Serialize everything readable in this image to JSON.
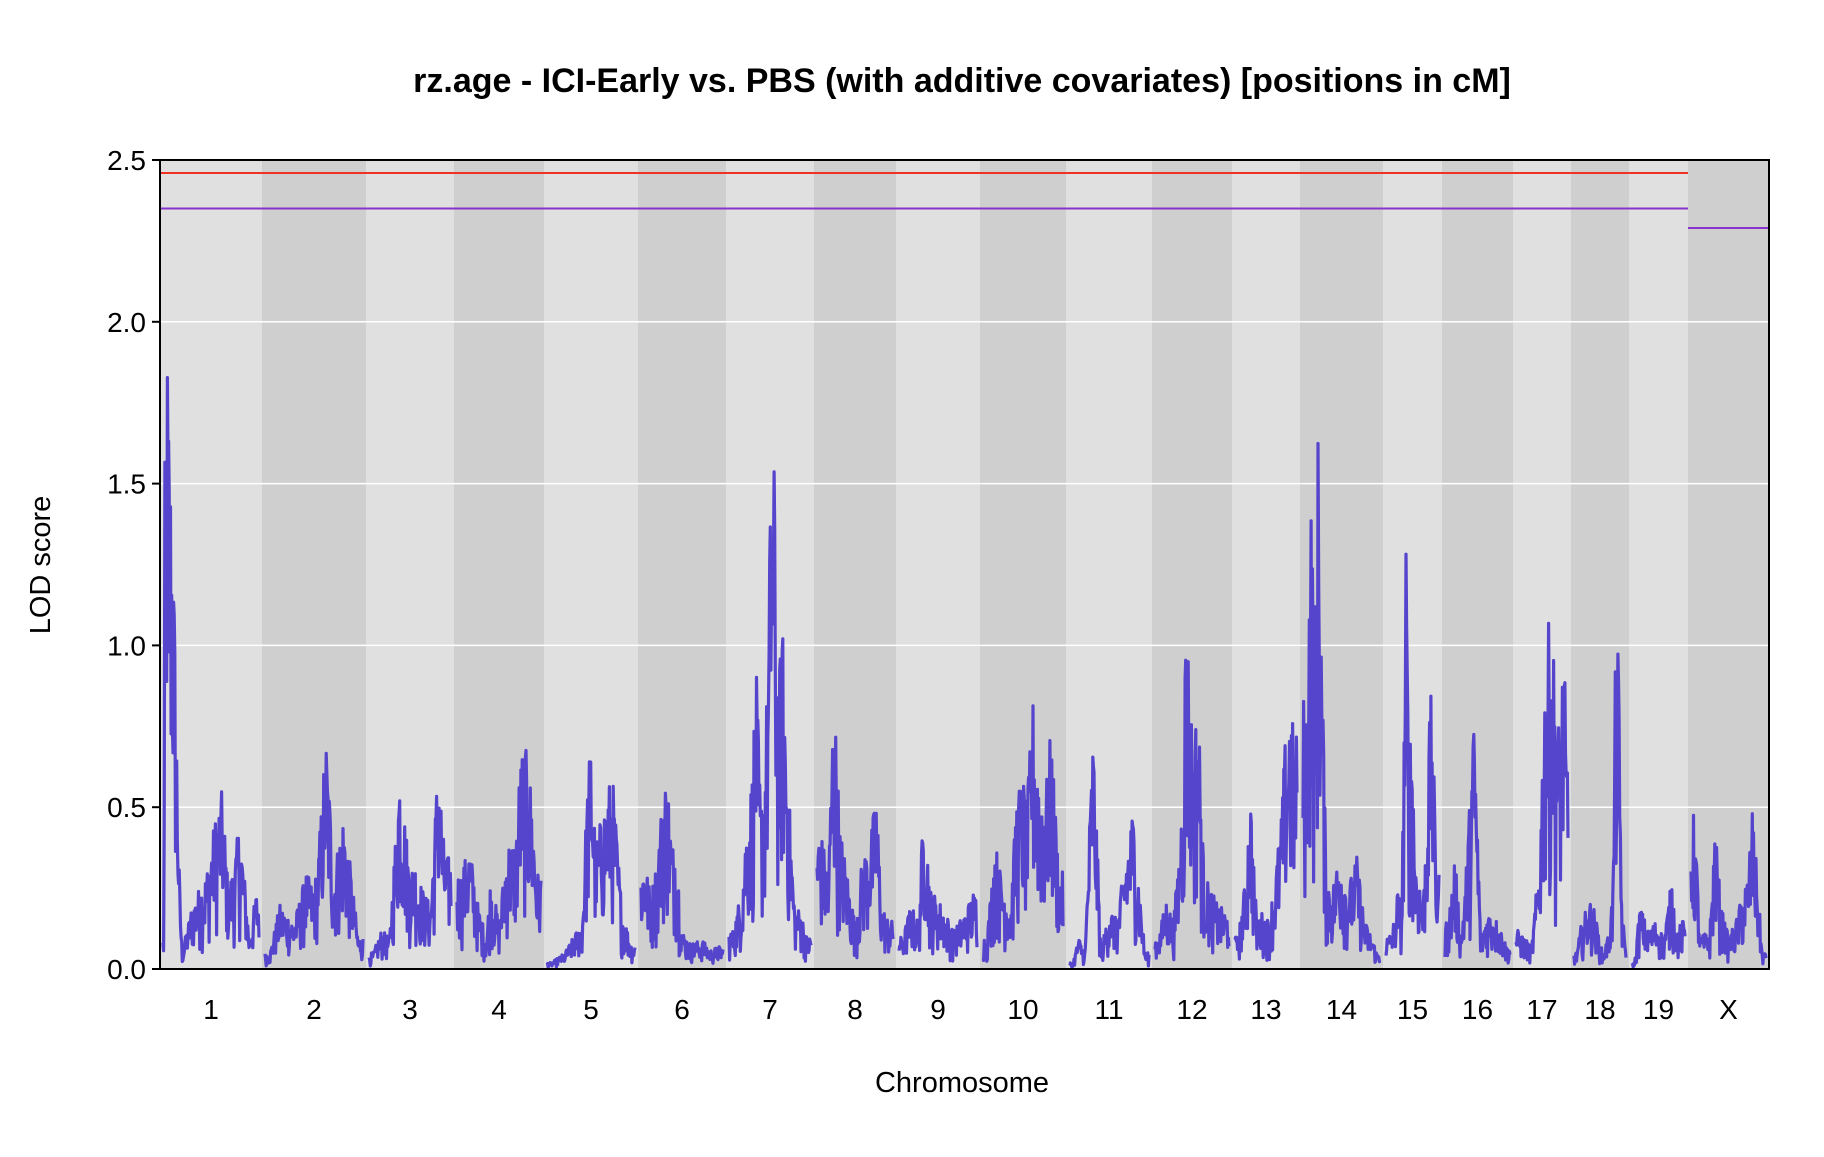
{
  "chart_data": {
    "type": "line",
    "title": "rz.age - ICI-Early vs. PBS (with additive covariates) [positions in cM]",
    "xlabel": "Chromosome",
    "ylabel": "LOD score",
    "ylim": [
      0,
      2.5
    ],
    "yticks": [
      "0.0",
      "0.5",
      "1.0",
      "1.5",
      "2.0",
      "2.5"
    ],
    "grid": "horizontal",
    "background_colors": {
      "light": "#e0e0e0",
      "dark": "#cfcfcf"
    },
    "line_color": "#5544cc",
    "chromosomes": [
      {
        "name": "1",
        "peaks": [
          [
            0.01,
            0.1
          ],
          [
            0.02,
            1.65
          ],
          [
            0.04,
            2.01
          ],
          [
            0.07,
            1.66
          ],
          [
            0.1,
            1.45
          ],
          [
            0.12,
            1.12
          ],
          [
            0.14,
            0.8
          ],
          [
            0.17,
            0.3
          ],
          [
            0.2,
            0.05
          ],
          [
            0.3,
            0.2
          ],
          [
            0.45,
            0.3
          ],
          [
            0.55,
            0.48
          ],
          [
            0.62,
            0.56
          ],
          [
            0.68,
            0.25
          ],
          [
            0.75,
            0.35
          ],
          [
            0.8,
            0.47
          ],
          [
            0.9,
            0.1
          ],
          [
            0.97,
            0.24
          ]
        ]
      },
      {
        "name": "2",
        "peaks": [
          [
            0.05,
            0.05
          ],
          [
            0.15,
            0.2
          ],
          [
            0.3,
            0.15
          ],
          [
            0.42,
            0.3
          ],
          [
            0.5,
            0.25
          ],
          [
            0.55,
            0.38
          ],
          [
            0.62,
            0.74
          ],
          [
            0.66,
            0.55
          ],
          [
            0.7,
            0.3
          ],
          [
            0.8,
            0.49
          ],
          [
            0.88,
            0.3
          ],
          [
            0.95,
            0.1
          ]
        ]
      },
      {
        "name": "3",
        "peaks": [
          [
            0.05,
            0.05
          ],
          [
            0.15,
            0.12
          ],
          [
            0.25,
            0.1
          ],
          [
            0.33,
            0.45
          ],
          [
            0.37,
            0.65
          ],
          [
            0.42,
            0.52
          ],
          [
            0.5,
            0.3
          ],
          [
            0.55,
            0.35
          ],
          [
            0.65,
            0.25
          ],
          [
            0.75,
            0.2
          ],
          [
            0.85,
            0.7
          ],
          [
            0.9,
            0.42
          ],
          [
            0.95,
            0.35
          ]
        ]
      },
      {
        "name": "4",
        "peaks": [
          [
            0.05,
            0.3
          ],
          [
            0.15,
            0.39
          ],
          [
            0.25,
            0.2
          ],
          [
            0.35,
            0.1
          ],
          [
            0.4,
            0.28
          ],
          [
            0.5,
            0.15
          ],
          [
            0.6,
            0.4
          ],
          [
            0.7,
            0.4
          ],
          [
            0.75,
            0.65
          ],
          [
            0.8,
            0.71
          ],
          [
            0.88,
            0.58
          ],
          [
            0.95,
            0.3
          ]
        ]
      },
      {
        "name": "5",
        "peaks": [
          [
            0.05,
            0.02
          ],
          [
            0.2,
            0.05
          ],
          [
            0.3,
            0.1
          ],
          [
            0.4,
            0.15
          ],
          [
            0.45,
            0.52
          ],
          [
            0.5,
            0.74
          ],
          [
            0.55,
            0.4
          ],
          [
            0.6,
            0.45
          ],
          [
            0.7,
            0.58
          ],
          [
            0.75,
            0.58
          ],
          [
            0.85,
            0.2
          ],
          [
            0.95,
            0.08
          ]
        ]
      },
      {
        "name": "6",
        "peaks": [
          [
            0.05,
            0.34
          ],
          [
            0.12,
            0.23
          ],
          [
            0.2,
            0.35
          ],
          [
            0.28,
            0.6
          ],
          [
            0.33,
            0.58
          ],
          [
            0.38,
            0.38
          ],
          [
            0.42,
            0.43
          ],
          [
            0.5,
            0.12
          ],
          [
            0.6,
            0.08
          ],
          [
            0.75,
            0.09
          ],
          [
            0.85,
            0.06
          ],
          [
            0.95,
            0.07
          ]
        ]
      },
      {
        "name": "7",
        "peaks": [
          [
            0.05,
            0.12
          ],
          [
            0.15,
            0.25
          ],
          [
            0.22,
            0.48
          ],
          [
            0.28,
            0.6
          ],
          [
            0.33,
            0.95
          ],
          [
            0.38,
            0.55
          ],
          [
            0.42,
            0.55
          ],
          [
            0.48,
            1.0
          ],
          [
            0.52,
            1.75
          ],
          [
            0.56,
            1.5
          ],
          [
            0.6,
            0.85
          ],
          [
            0.65,
            1.1
          ],
          [
            0.72,
            0.6
          ],
          [
            0.8,
            0.2
          ],
          [
            0.88,
            0.18
          ],
          [
            0.95,
            0.1
          ]
        ]
      },
      {
        "name": "8",
        "peaks": [
          [
            0.05,
            0.43
          ],
          [
            0.15,
            0.3
          ],
          [
            0.22,
            0.9
          ],
          [
            0.3,
            0.45
          ],
          [
            0.4,
            0.3
          ],
          [
            0.5,
            0.15
          ],
          [
            0.6,
            0.35
          ],
          [
            0.7,
            0.4
          ],
          [
            0.78,
            0.56
          ],
          [
            0.85,
            0.2
          ],
          [
            0.95,
            0.15
          ]
        ]
      },
      {
        "name": "9",
        "peaks": [
          [
            0.05,
            0.1
          ],
          [
            0.15,
            0.2
          ],
          [
            0.25,
            0.15
          ],
          [
            0.32,
            0.54
          ],
          [
            0.4,
            0.25
          ],
          [
            0.55,
            0.2
          ],
          [
            0.7,
            0.12
          ],
          [
            0.85,
            0.18
          ],
          [
            0.95,
            0.24
          ]
        ]
      },
      {
        "name": "10",
        "peaks": [
          [
            0.05,
            0.1
          ],
          [
            0.15,
            0.4
          ],
          [
            0.22,
            0.3
          ],
          [
            0.35,
            0.2
          ],
          [
            0.42,
            0.55
          ],
          [
            0.5,
            0.6
          ],
          [
            0.55,
            0.5
          ],
          [
            0.62,
            0.85
          ],
          [
            0.7,
            0.62
          ],
          [
            0.78,
            0.55
          ],
          [
            0.85,
            0.75
          ],
          [
            0.95,
            0.3
          ]
        ]
      },
      {
        "name": "11",
        "peaks": [
          [
            0.05,
            0.02
          ],
          [
            0.12,
            0.1
          ],
          [
            0.2,
            0.05
          ],
          [
            0.3,
            0.76
          ],
          [
            0.4,
            0.05
          ],
          [
            0.5,
            0.2
          ],
          [
            0.6,
            0.15
          ],
          [
            0.7,
            0.34
          ],
          [
            0.8,
            0.5
          ],
          [
            0.9,
            0.2
          ],
          [
            0.95,
            0.05
          ]
        ]
      },
      {
        "name": "12",
        "peaks": [
          [
            0.05,
            0.1
          ],
          [
            0.15,
            0.22
          ],
          [
            0.25,
            0.15
          ],
          [
            0.32,
            0.35
          ],
          [
            0.38,
            0.6
          ],
          [
            0.42,
            1.17
          ],
          [
            0.46,
            0.95
          ],
          [
            0.52,
            0.68
          ],
          [
            0.58,
            0.88
          ],
          [
            0.66,
            0.3
          ],
          [
            0.75,
            0.25
          ],
          [
            0.85,
            0.2
          ],
          [
            0.95,
            0.18
          ]
        ]
      },
      {
        "name": "13",
        "peaks": [
          [
            0.05,
            0.1
          ],
          [
            0.15,
            0.25
          ],
          [
            0.25,
            0.55
          ],
          [
            0.35,
            0.15
          ],
          [
            0.45,
            0.18
          ],
          [
            0.55,
            0.15
          ],
          [
            0.65,
            0.3
          ],
          [
            0.75,
            0.48
          ],
          [
            0.82,
            0.75
          ],
          [
            0.88,
            0.84
          ],
          [
            0.95,
            0.74
          ]
        ]
      },
      {
        "name": "14",
        "peaks": [
          [
            0.05,
            0.85
          ],
          [
            0.1,
            1.52
          ],
          [
            0.15,
            1.1
          ],
          [
            0.2,
            1.73
          ],
          [
            0.25,
            0.95
          ],
          [
            0.3,
            0.3
          ],
          [
            0.38,
            0.25
          ],
          [
            0.48,
            0.38
          ],
          [
            0.58,
            0.25
          ],
          [
            0.7,
            0.35
          ],
          [
            0.8,
            0.15
          ],
          [
            0.9,
            0.1
          ],
          [
            0.96,
            0.05
          ]
        ]
      },
      {
        "name": "15",
        "peaks": [
          [
            0.05,
            0.1
          ],
          [
            0.15,
            0.15
          ],
          [
            0.22,
            0.25
          ],
          [
            0.3,
            0.2
          ],
          [
            0.38,
            1.35
          ],
          [
            0.43,
            0.6
          ],
          [
            0.48,
            0.85
          ],
          [
            0.55,
            0.35
          ],
          [
            0.62,
            0.3
          ],
          [
            0.7,
            0.2
          ],
          [
            0.8,
            0.68
          ],
          [
            0.86,
            0.9
          ],
          [
            0.95,
            0.3
          ]
        ]
      },
      {
        "name": "16",
        "peaks": [
          [
            0.05,
            0.15
          ],
          [
            0.15,
            0.35
          ],
          [
            0.25,
            0.1
          ],
          [
            0.35,
            0.4
          ],
          [
            0.45,
            0.8
          ],
          [
            0.55,
            0.1
          ],
          [
            0.65,
            0.18
          ],
          [
            0.75,
            0.17
          ],
          [
            0.85,
            0.13
          ],
          [
            0.95,
            0.07
          ]
        ]
      },
      {
        "name": "17",
        "peaks": [
          [
            0.05,
            0.12
          ],
          [
            0.15,
            0.1
          ],
          [
            0.3,
            0.07
          ],
          [
            0.45,
            0.35
          ],
          [
            0.55,
            0.9
          ],
          [
            0.62,
            1.07
          ],
          [
            0.7,
            1.06
          ],
          [
            0.78,
            0.8
          ],
          [
            0.85,
            0.75
          ],
          [
            0.92,
            1.07
          ],
          [
            0.96,
            0.7
          ]
        ]
      },
      {
        "name": "18",
        "peaks": [
          [
            0.05,
            0.05
          ],
          [
            0.15,
            0.15
          ],
          [
            0.25,
            0.19
          ],
          [
            0.35,
            0.22
          ],
          [
            0.45,
            0.13
          ],
          [
            0.55,
            0.05
          ],
          [
            0.65,
            0.1
          ],
          [
            0.75,
            0.25
          ],
          [
            0.8,
            0.99
          ],
          [
            0.85,
            1.0
          ],
          [
            0.92,
            0.2
          ],
          [
            0.97,
            0.1
          ]
        ]
      },
      {
        "name": "19",
        "peaks": [
          [
            0.05,
            0.02
          ],
          [
            0.15,
            0.2
          ],
          [
            0.3,
            0.12
          ],
          [
            0.45,
            0.15
          ],
          [
            0.6,
            0.1
          ],
          [
            0.75,
            0.28
          ],
          [
            0.85,
            0.12
          ],
          [
            0.95,
            0.15
          ]
        ]
      },
      {
        "name": "X",
        "peaks": [
          [
            0.05,
            0.48
          ],
          [
            0.12,
            0.1
          ],
          [
            0.25,
            0.12
          ],
          [
            0.32,
            0.45
          ],
          [
            0.4,
            0.2
          ],
          [
            0.5,
            0.1
          ],
          [
            0.6,
            0.15
          ],
          [
            0.7,
            0.25
          ],
          [
            0.76,
            0.3
          ],
          [
            0.82,
            0.5
          ],
          [
            0.88,
            0.3
          ],
          [
            0.95,
            0.05
          ]
        ]
      }
    ],
    "thresholds": [
      {
        "color": "#ee3322",
        "autosome": 2.46,
        "x": null
      },
      {
        "color": "#8833cc",
        "autosome": 2.35,
        "x": 2.29
      }
    ]
  }
}
